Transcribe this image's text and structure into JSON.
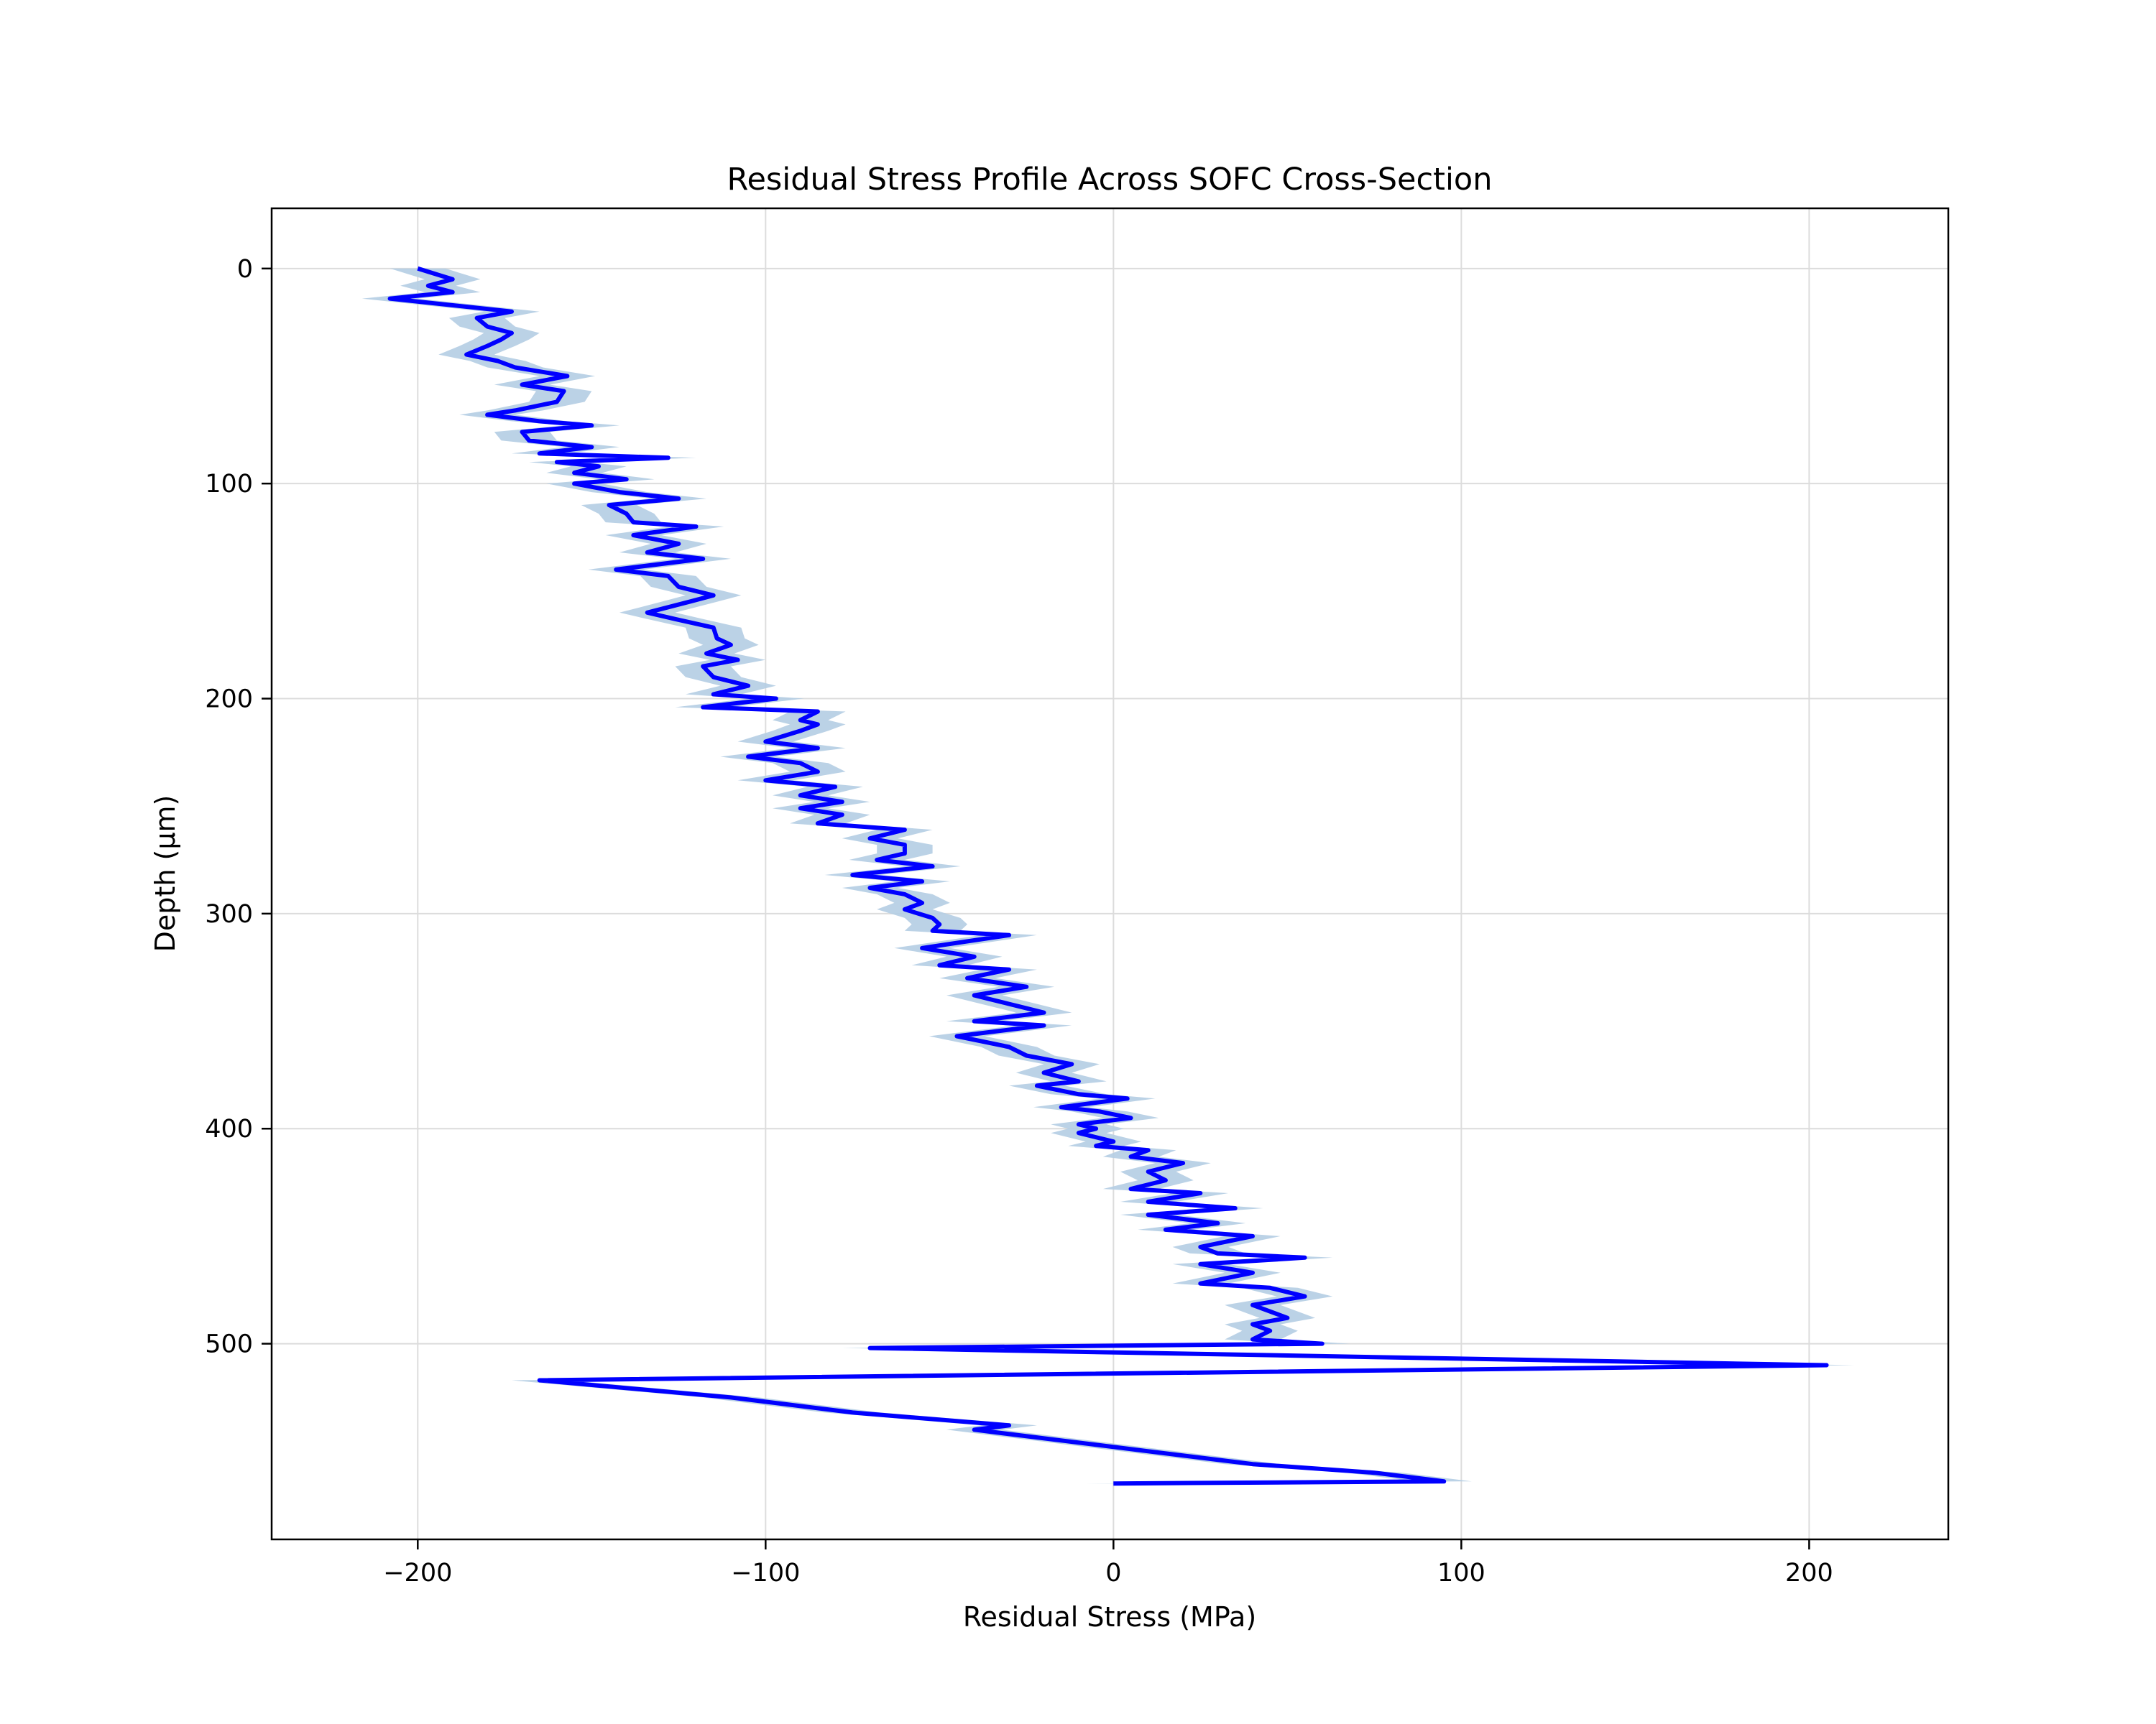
{
  "chart_data": {
    "type": "line",
    "title": "Residual Stress Profile Across SOFC Cross-Section",
    "xlabel": "Residual Stress (MPa)",
    "ylabel": "Depth (µm)",
    "xlim": [
      -242,
      240
    ],
    "ylim": [
      591,
      -28
    ],
    "y_inverted": true,
    "xticks": [
      -200,
      -100,
      0,
      100,
      200
    ],
    "xtick_labels": [
      "−200",
      "−100",
      "0",
      "100",
      "200"
    ],
    "yticks": [
      0,
      100,
      200,
      300,
      400,
      500
    ],
    "ytick_labels": [
      "0",
      "100",
      "200",
      "300",
      "400",
      "500"
    ],
    "grid": true,
    "legend": "none",
    "series": [
      {
        "line_color": "#0000ff",
        "band_color": "#b4cde3",
        "band_halfwidth": 8,
        "points": [
          [
            -200,
            0
          ],
          [
            -190,
            5
          ],
          [
            -197,
            8
          ],
          [
            -190,
            11
          ],
          [
            -208,
            14
          ],
          [
            -173,
            20
          ],
          [
            -183,
            23
          ],
          [
            -180,
            27
          ],
          [
            -173,
            30
          ],
          [
            -176,
            33
          ],
          [
            -180,
            36
          ],
          [
            -186,
            40
          ],
          [
            -177,
            43
          ],
          [
            -172,
            46
          ],
          [
            -157,
            50
          ],
          [
            -170,
            54
          ],
          [
            -158,
            57
          ],
          [
            -160,
            62
          ],
          [
            -172,
            66
          ],
          [
            -180,
            68
          ],
          [
            -165,
            71
          ],
          [
            -150,
            73
          ],
          [
            -170,
            76
          ],
          [
            -168,
            80
          ],
          [
            -150,
            83
          ],
          [
            -165,
            86
          ],
          [
            -128,
            88
          ],
          [
            -160,
            90
          ],
          [
            -148,
            92
          ],
          [
            -155,
            95
          ],
          [
            -140,
            98
          ],
          [
            -155,
            100
          ],
          [
            -142,
            104
          ],
          [
            -125,
            107
          ],
          [
            -145,
            110
          ],
          [
            -140,
            114
          ],
          [
            -138,
            118
          ],
          [
            -120,
            120
          ],
          [
            -138,
            124
          ],
          [
            -125,
            128
          ],
          [
            -134,
            132
          ],
          [
            -118,
            135
          ],
          [
            -143,
            140
          ],
          [
            -128,
            143
          ],
          [
            -125,
            148
          ],
          [
            -115,
            152
          ],
          [
            -122,
            155
          ],
          [
            -134,
            160
          ],
          [
            -126,
            163
          ],
          [
            -115,
            167
          ],
          [
            -114,
            172
          ],
          [
            -110,
            175
          ],
          [
            -117,
            179
          ],
          [
            -108,
            182
          ],
          [
            -118,
            185
          ],
          [
            -115,
            190
          ],
          [
            -105,
            194
          ],
          [
            -115,
            198
          ],
          [
            -97,
            200
          ],
          [
            -118,
            204
          ],
          [
            -85,
            206
          ],
          [
            -90,
            210
          ],
          [
            -85,
            212
          ],
          [
            -90,
            215
          ],
          [
            -100,
            220
          ],
          [
            -85,
            223
          ],
          [
            -105,
            227
          ],
          [
            -90,
            230
          ],
          [
            -85,
            234
          ],
          [
            -100,
            238
          ],
          [
            -80,
            241
          ],
          [
            -90,
            245
          ],
          [
            -78,
            248
          ],
          [
            -90,
            251
          ],
          [
            -78,
            254
          ],
          [
            -85,
            258
          ],
          [
            -60,
            261
          ],
          [
            -70,
            265
          ],
          [
            -60,
            268
          ],
          [
            -60,
            272
          ],
          [
            -68,
            275
          ],
          [
            -52,
            278
          ],
          [
            -75,
            282
          ],
          [
            -55,
            285
          ],
          [
            -70,
            288
          ],
          [
            -60,
            291
          ],
          [
            -55,
            295
          ],
          [
            -60,
            298
          ],
          [
            -52,
            302
          ],
          [
            -50,
            305
          ],
          [
            -52,
            308
          ],
          [
            -30,
            310
          ],
          [
            -55,
            316
          ],
          [
            -40,
            320
          ],
          [
            -50,
            324
          ],
          [
            -30,
            326
          ],
          [
            -42,
            330
          ],
          [
            -25,
            334
          ],
          [
            -40,
            338
          ],
          [
            -30,
            342
          ],
          [
            -20,
            346
          ],
          [
            -40,
            350
          ],
          [
            -20,
            352
          ],
          [
            -45,
            357
          ],
          [
            -30,
            362
          ],
          [
            -25,
            366
          ],
          [
            -12,
            370
          ],
          [
            -20,
            374
          ],
          [
            -10,
            378
          ],
          [
            -22,
            380
          ],
          [
            -10,
            384
          ],
          [
            4,
            386
          ],
          [
            -15,
            390
          ],
          [
            -4,
            392
          ],
          [
            5,
            395
          ],
          [
            -10,
            398
          ],
          [
            -5,
            400
          ],
          [
            -10,
            402
          ],
          [
            0,
            406
          ],
          [
            -5,
            408
          ],
          [
            10,
            410
          ],
          [
            5,
            413
          ],
          [
            20,
            416
          ],
          [
            10,
            420
          ],
          [
            15,
            424
          ],
          [
            5,
            428
          ],
          [
            25,
            430
          ],
          [
            10,
            434
          ],
          [
            35,
            437
          ],
          [
            10,
            440
          ],
          [
            30,
            444
          ],
          [
            15,
            447
          ],
          [
            40,
            450
          ],
          [
            25,
            455
          ],
          [
            30,
            458
          ],
          [
            55,
            460
          ],
          [
            25,
            463
          ],
          [
            40,
            467
          ],
          [
            25,
            472
          ],
          [
            45,
            474
          ],
          [
            55,
            478
          ],
          [
            40,
            482
          ],
          [
            45,
            485
          ],
          [
            50,
            488
          ],
          [
            40,
            491
          ],
          [
            45,
            494
          ],
          [
            40,
            498
          ],
          [
            60,
            500
          ],
          [
            -70,
            502
          ],
          [
            205,
            510
          ],
          [
            -165,
            517
          ],
          [
            -110,
            525
          ],
          [
            -75,
            532
          ],
          [
            -30,
            538
          ],
          [
            -40,
            540
          ],
          [
            -15,
            545
          ],
          [
            10,
            550
          ],
          [
            40,
            556
          ],
          [
            75,
            560
          ],
          [
            95,
            564
          ],
          [
            0,
            565
          ]
        ]
      }
    ]
  }
}
